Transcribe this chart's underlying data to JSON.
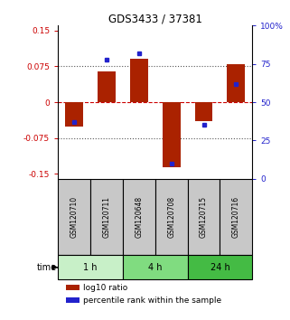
{
  "title": "GDS3433 / 37381",
  "samples": [
    "GSM120710",
    "GSM120711",
    "GSM120648",
    "GSM120708",
    "GSM120715",
    "GSM120716"
  ],
  "log10_ratio": [
    -0.05,
    0.065,
    0.09,
    -0.135,
    -0.04,
    0.08
  ],
  "percentile_rank": [
    37,
    78,
    82,
    10,
    35,
    62
  ],
  "groups": [
    {
      "label": "1 h",
      "start": 0,
      "end": 2,
      "color": "#c8f0c8"
    },
    {
      "label": "4 h",
      "start": 2,
      "end": 4,
      "color": "#80dc80"
    },
    {
      "label": "24 h",
      "start": 4,
      "end": 6,
      "color": "#44bb44"
    }
  ],
  "ylim": [
    -0.16,
    0.16
  ],
  "yticks": [
    -0.15,
    -0.075,
    0,
    0.075,
    0.15
  ],
  "ytick_labels": [
    "-0.15",
    "-0.075",
    "0",
    "0.075",
    "0.15"
  ],
  "right_yticks": [
    0,
    25,
    50,
    75,
    100
  ],
  "right_ytick_labels": [
    "0",
    "25",
    "50",
    "75",
    "100%"
  ],
  "dotted_lines_black": [
    -0.075,
    0.075
  ],
  "zero_line": 0,
  "bar_color_red": "#aa2200",
  "bar_color_blue": "#2222cc",
  "sample_box_color": "#c8c8c8",
  "title_color": "#000000",
  "zero_line_color": "#cc0000",
  "bar_width": 0.55,
  "legend_labels": [
    "log10 ratio",
    "percentile rank within the sample"
  ]
}
